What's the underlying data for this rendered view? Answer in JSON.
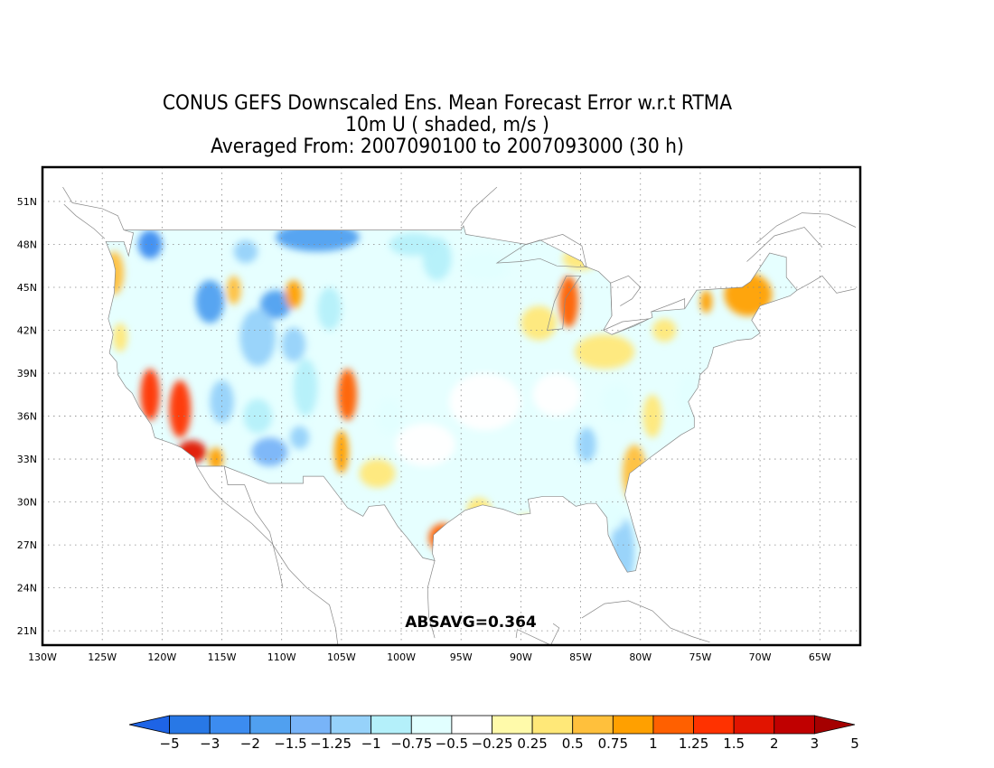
{
  "title": {
    "line1": "CONUS GEFS Downscaled Ens. Mean Forecast Error w.r.t RTMA",
    "line2": "10m U ( shaded, m/s )",
    "line3": "Averaged From: 2007090100 to 2007093000 (30 h)"
  },
  "annotation": "ABSAVG=0.364",
  "axes": {
    "lon_labels": [
      "130W",
      "125W",
      "120W",
      "115W",
      "110W",
      "105W",
      "100W",
      "95W",
      "90W",
      "85W",
      "80W",
      "75W",
      "70W",
      "65W"
    ],
    "lon_values": [
      -130,
      -125,
      -120,
      -115,
      -110,
      -105,
      -100,
      -95,
      -90,
      -85,
      -80,
      -75,
      -70,
      -65
    ],
    "lat_labels": [
      "51N",
      "48N",
      "45N",
      "42N",
      "39N",
      "36N",
      "33N",
      "30N",
      "27N",
      "24N",
      "21N"
    ],
    "lat_values": [
      51,
      48,
      45,
      42,
      39,
      36,
      33,
      30,
      27,
      24,
      21
    ],
    "lon_range": [
      -130,
      -62
    ],
    "lat_range": [
      20,
      52
    ],
    "grid": "dotted"
  },
  "colorbar": {
    "labels": [
      "-5",
      "-3",
      "-2",
      "-1.5",
      "-1.25",
      "-1",
      "-0.75",
      "-0.5",
      "-0.25",
      "0.25",
      "0.5",
      "0.75",
      "1",
      "1.25",
      "1.5",
      "2",
      "3",
      "5"
    ],
    "colors": [
      "#1e64e6",
      "#2878e6",
      "#3c8cf0",
      "#50a0f0",
      "#78b4f8",
      "#96d2fa",
      "#b4f0fa",
      "#e1ffff",
      "#ffffff",
      "#fffaaa",
      "#ffe878",
      "#ffc03c",
      "#ffa000",
      "#ff6000",
      "#ff3200",
      "#e11400",
      "#c00000",
      "#a50000"
    ]
  },
  "field_blobs": [
    {
      "lon": -107,
      "lat": 48.5,
      "rx": 3.5,
      "ry": 1.0,
      "v": -1.5
    },
    {
      "lon": -121,
      "lat": 48.0,
      "rx": 1.0,
      "ry": 1.0,
      "v": -2
    },
    {
      "lon": -113,
      "lat": 47.5,
      "rx": 1.0,
      "ry": 0.8,
      "v": -1
    },
    {
      "lon": -99,
      "lat": 48.0,
      "rx": 2.0,
      "ry": 0.8,
      "v": -0.75
    },
    {
      "lon": -97,
      "lat": 47.0,
      "rx": 1.2,
      "ry": 1.5,
      "v": -0.75
    },
    {
      "lon": -93,
      "lat": 46.5,
      "rx": 2.0,
      "ry": 1.0,
      "v": -0.5
    },
    {
      "lon": -116,
      "lat": 44.0,
      "rx": 1.2,
      "ry": 1.5,
      "v": -1.5
    },
    {
      "lon": -110.5,
      "lat": 43.8,
      "rx": 1.3,
      "ry": 1.0,
      "v": -1.5
    },
    {
      "lon": -112,
      "lat": 41.5,
      "rx": 1.5,
      "ry": 2.0,
      "v": -1
    },
    {
      "lon": -109,
      "lat": 41.0,
      "rx": 1.0,
      "ry": 1.2,
      "v": -1
    },
    {
      "lon": -106,
      "lat": 43.5,
      "rx": 1.0,
      "ry": 1.5,
      "v": -0.75
    },
    {
      "lon": -108,
      "lat": 38.0,
      "rx": 1.0,
      "ry": 2.0,
      "v": -0.75
    },
    {
      "lon": -115,
      "lat": 37.0,
      "rx": 1.0,
      "ry": 1.5,
      "v": -1
    },
    {
      "lon": -111,
      "lat": 33.5,
      "rx": 1.5,
      "ry": 1.0,
      "v": -1.25
    },
    {
      "lon": -112,
      "lat": 36.0,
      "rx": 1.2,
      "ry": 1.2,
      "v": -0.75
    },
    {
      "lon": -108.5,
      "lat": 34.5,
      "rx": 0.8,
      "ry": 0.8,
      "v": -1
    },
    {
      "lon": -101,
      "lat": 36.0,
      "rx": 1.0,
      "ry": 1.2,
      "v": -0.5
    },
    {
      "lon": -98,
      "lat": 34.0,
      "rx": 2.5,
      "ry": 1.5,
      "v": -0.25
    },
    {
      "lon": -93,
      "lat": 37.0,
      "rx": 3.0,
      "ry": 2.0,
      "v": -0.25
    },
    {
      "lon": -87,
      "lat": 37.5,
      "rx": 2.0,
      "ry": 1.5,
      "v": -0.25
    },
    {
      "lon": -82,
      "lat": 37.0,
      "rx": 1.2,
      "ry": 1.2,
      "v": -0.5
    },
    {
      "lon": -84.5,
      "lat": 34.0,
      "rx": 0.8,
      "ry": 1.2,
      "v": -1
    },
    {
      "lon": -81.5,
      "lat": 26.5,
      "rx": 1.0,
      "ry": 2.5,
      "v": -1
    },
    {
      "lon": -82.5,
      "lat": 29.0,
      "rx": 1.2,
      "ry": 1.0,
      "v": -0.5
    },
    {
      "lon": -76,
      "lat": 37.5,
      "rx": 0.8,
      "ry": 1.5,
      "v": -0.5
    },
    {
      "lon": -124,
      "lat": 46.0,
      "rx": 0.8,
      "ry": 1.5,
      "v": 0.75
    },
    {
      "lon": -123.5,
      "lat": 41.5,
      "rx": 0.6,
      "ry": 1.0,
      "v": 0.5
    },
    {
      "lon": -114,
      "lat": 44.8,
      "rx": 0.6,
      "ry": 1.0,
      "v": 0.75
    },
    {
      "lon": -109,
      "lat": 44.5,
      "rx": 0.7,
      "ry": 1.0,
      "v": 1
    },
    {
      "lon": -121,
      "lat": 37.5,
      "rx": 0.8,
      "ry": 1.8,
      "v": 1.5
    },
    {
      "lon": -118.5,
      "lat": 36.5,
      "rx": 0.9,
      "ry": 2.0,
      "v": 1.5
    },
    {
      "lon": -117.5,
      "lat": 33.5,
      "rx": 1.2,
      "ry": 0.8,
      "v": 2
    },
    {
      "lon": -115.5,
      "lat": 33.0,
      "rx": 0.6,
      "ry": 0.8,
      "v": 1
    },
    {
      "lon": -104.5,
      "lat": 37.5,
      "rx": 0.8,
      "ry": 1.8,
      "v": 1.25
    },
    {
      "lon": -105,
      "lat": 33.5,
      "rx": 0.6,
      "ry": 1.5,
      "v": 1
    },
    {
      "lon": -102,
      "lat": 32.0,
      "rx": 1.5,
      "ry": 1.0,
      "v": 0.5
    },
    {
      "lon": -96.5,
      "lat": 27.5,
      "rx": 1.2,
      "ry": 1.0,
      "v": 1.25
    },
    {
      "lon": -93.5,
      "lat": 29.5,
      "rx": 1.0,
      "ry": 0.8,
      "v": 0.5
    },
    {
      "lon": -89.5,
      "lat": 28.5,
      "rx": 1.0,
      "ry": 0.6,
      "v": 0.5
    },
    {
      "lon": -86,
      "lat": 44.0,
      "rx": 0.8,
      "ry": 1.8,
      "v": 1.25
    },
    {
      "lon": -88.5,
      "lat": 42.5,
      "rx": 1.5,
      "ry": 1.2,
      "v": 0.5
    },
    {
      "lon": -85,
      "lat": 47.0,
      "rx": 1.5,
      "ry": 0.8,
      "v": 0.5
    },
    {
      "lon": -83,
      "lat": 40.5,
      "rx": 2.5,
      "ry": 1.2,
      "v": 0.5
    },
    {
      "lon": -80.5,
      "lat": 32.0,
      "rx": 1.0,
      "ry": 2.0,
      "v": 0.75
    },
    {
      "lon": -79,
      "lat": 36.0,
      "rx": 0.8,
      "ry": 1.5,
      "v": 0.5
    },
    {
      "lon": -71,
      "lat": 44.5,
      "rx": 2.0,
      "ry": 1.5,
      "v": 1
    },
    {
      "lon": -74.5,
      "lat": 44.0,
      "rx": 0.5,
      "ry": 0.8,
      "v": 1
    },
    {
      "lon": -78,
      "lat": 42.0,
      "rx": 1.0,
      "ry": 0.8,
      "v": 0.5
    }
  ]
}
